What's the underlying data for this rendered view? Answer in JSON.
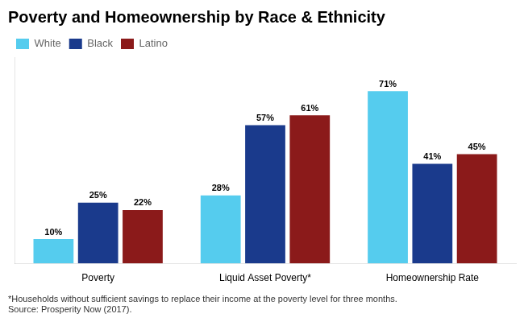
{
  "chart_data": {
    "type": "bar",
    "title": "Poverty and Homeownership by Race & Ethnicity",
    "annotations": [
      "*Households without sufficient savings to replace their income at the poverty level for three months.",
      "Source: Prosperity Now (2017)."
    ],
    "categories": [
      "Poverty",
      "Liquid Asset Poverty*",
      "Homeownership Rate"
    ],
    "series": [
      {
        "name": "White",
        "color": "#55CCEE",
        "values": [
          10,
          28,
          71
        ],
        "value_labels": [
          "10%",
          "28%",
          "71%"
        ]
      },
      {
        "name": "Black",
        "color": "#1A3A8C",
        "values": [
          25,
          57,
          41
        ],
        "value_labels": [
          "25%",
          "57%",
          "41%"
        ]
      },
      {
        "name": "Latino",
        "color": "#8B1A1A",
        "values": [
          22,
          61,
          45
        ],
        "value_labels": [
          "22%",
          "61%",
          "45%"
        ]
      }
    ],
    "ylim": [
      0,
      85
    ],
    "grid": false,
    "legend": "upper left",
    "data_labels": true,
    "tick_labels": "x"
  }
}
